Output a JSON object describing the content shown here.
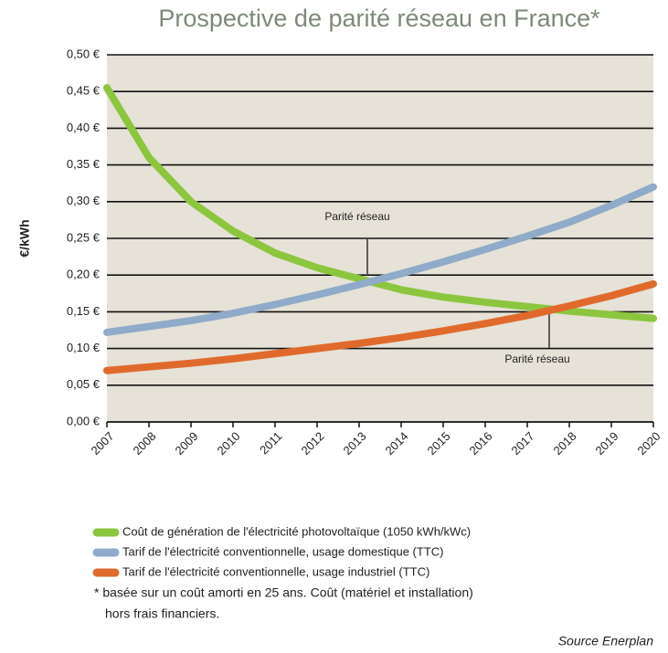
{
  "chart_data": {
    "type": "line",
    "title": "Prospective de parité réseau en France*",
    "y_label": "€/kWh",
    "x": [
      2007,
      2008,
      2009,
      2010,
      2011,
      2012,
      2013,
      2014,
      2015,
      2016,
      2017,
      2018,
      2019,
      2020
    ],
    "xlim": [
      2007,
      2020
    ],
    "xticks": [
      2007,
      2008,
      2009,
      2010,
      2011,
      2012,
      2013,
      2014,
      2015,
      2016,
      2017,
      2018,
      2019,
      2020
    ],
    "ylim": [
      0,
      0.5
    ],
    "yticks": [
      {
        "value": 0,
        "label": "0,00 €"
      },
      {
        "value": 0.05,
        "label": "0,05 €"
      },
      {
        "value": 0.1,
        "label": "0,10 €"
      },
      {
        "value": 0.15,
        "label": "0,15 €"
      },
      {
        "value": 0.2,
        "label": "0,20 €"
      },
      {
        "value": 0.25,
        "label": "0,25 €"
      },
      {
        "value": 0.3,
        "label": "0,30 €"
      },
      {
        "value": 0.35,
        "label": "0,35 €"
      },
      {
        "value": 0.4,
        "label": "0,40 €"
      },
      {
        "value": 0.45,
        "label": "0,45 €"
      },
      {
        "value": 0.5,
        "label": "0,50 €"
      }
    ],
    "grid": true,
    "series": [
      {
        "name": "Coût de génération de l'électricité photovoltaïque (1050 kWh/kWc)",
        "color": "#8cc63f",
        "values": [
          0.455,
          0.36,
          0.3,
          0.26,
          0.23,
          0.21,
          0.195,
          0.18,
          0.17,
          0.163,
          0.157,
          0.151,
          0.146,
          0.141
        ]
      },
      {
        "name": "Tarif de l'électricité conventionnelle, usage domestique (TTC)",
        "color": "#8fabc9",
        "values": [
          0.122,
          0.13,
          0.138,
          0.148,
          0.16,
          0.173,
          0.187,
          0.202,
          0.218,
          0.235,
          0.253,
          0.272,
          0.295,
          0.32
        ]
      },
      {
        "name": "Tarif de l'électricité conventionnelle, usage industriel (TTC)",
        "color": "#e06a2c",
        "values": [
          0.07,
          0.075,
          0.08,
          0.086,
          0.093,
          0.1,
          0.107,
          0.115,
          0.124,
          0.134,
          0.145,
          0.158,
          0.172,
          0.188
        ]
      }
    ],
    "annotations": [
      "Parité réseau",
      "Parité réseau"
    ],
    "footnote": [
      "* basée sur un coût amorti en 25 ans. Coût (matériel et installation)",
      "hors frais financiers."
    ],
    "source": "Source Enerplan"
  }
}
